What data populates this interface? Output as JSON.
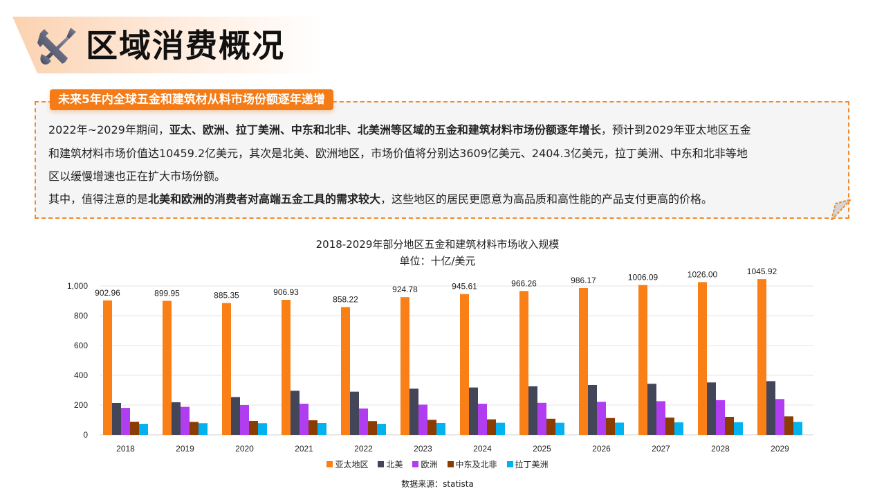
{
  "header": {
    "title": "区域消费概况",
    "icon": "tools-icon"
  },
  "info": {
    "tag": "未来5年内全球五金和建筑材从料市场份额逐年递增",
    "line1_pre": "2022年~2029年期间，",
    "line1_bold": "亚太、欧洲、拉丁美洲、中东和北非、北美洲等区域的五金和建筑材料市场份额逐年增长",
    "line1_post": "，预计到2029年亚太地区五金",
    "line2": "和建筑材料市场价值达10459.2亿美元，其次是北美、欧洲地区，市场价值将分别达3609亿美元、2404.3亿美元，拉丁美洲、中东和北非等地",
    "line3": "区以缓慢增速也正在扩大市场份额。",
    "line4_pre": "其中，值得注意的是",
    "line4_bold": "北美和欧洲的消费者对高端五金工具的需求较大",
    "line4_post": "，这些地区的居民更愿意为高品质和高性能的产品支付更高的价格。"
  },
  "source": "数据来源：statista",
  "chart_data": {
    "type": "bar",
    "title": "2018-2029年部分地区五金和建筑材料市场收入规模",
    "subtitle": "单位：十亿/美元",
    "xlabel": "",
    "ylabel": "",
    "categories": [
      "2018",
      "2019",
      "2020",
      "2021",
      "2022",
      "2023",
      "2024",
      "2025",
      "2026",
      "2027",
      "2028",
      "2029"
    ],
    "ylim": [
      0,
      1000
    ],
    "yticks": [
      0,
      200,
      400,
      600,
      800,
      1000
    ],
    "ytick_labels": [
      "0",
      "200",
      "400",
      "600",
      "800",
      "1,000"
    ],
    "grid": true,
    "legend_position": "bottom",
    "series": [
      {
        "name": "亚太地区",
        "color": "#fa7f17",
        "values": [
          902.96,
          899.95,
          885.35,
          906.93,
          858.22,
          924.78,
          945.61,
          966.26,
          986.17,
          1006.09,
          1026.0,
          1045.92
        ],
        "labels": [
          "902.96",
          "899.95",
          "885.35",
          "906.93",
          "858.22",
          "924.78",
          "945.61",
          "966.26",
          "986.17",
          "1006.09",
          "1026.00",
          "1045.92"
        ]
      },
      {
        "name": "北美",
        "color": "#434658",
        "values": [
          214,
          219,
          254,
          296,
          290,
          310,
          318,
          326,
          335,
          343,
          352,
          360.9
        ]
      },
      {
        "name": "欧洲",
        "color": "#b03ef0",
        "values": [
          181,
          188,
          200,
          209,
          177,
          203,
          209,
          215,
          222,
          226,
          233,
          240.43
        ]
      },
      {
        "name": "中东及北非",
        "color": "#8b3c00",
        "values": [
          88,
          87,
          93,
          98,
          92,
          101,
          104,
          108,
          113,
          116,
          121,
          124
        ]
      },
      {
        "name": "拉丁美洲",
        "color": "#00b2f0",
        "values": [
          74,
          78,
          78,
          79,
          74,
          79,
          81,
          81,
          82,
          84,
          85,
          87
        ]
      }
    ]
  }
}
